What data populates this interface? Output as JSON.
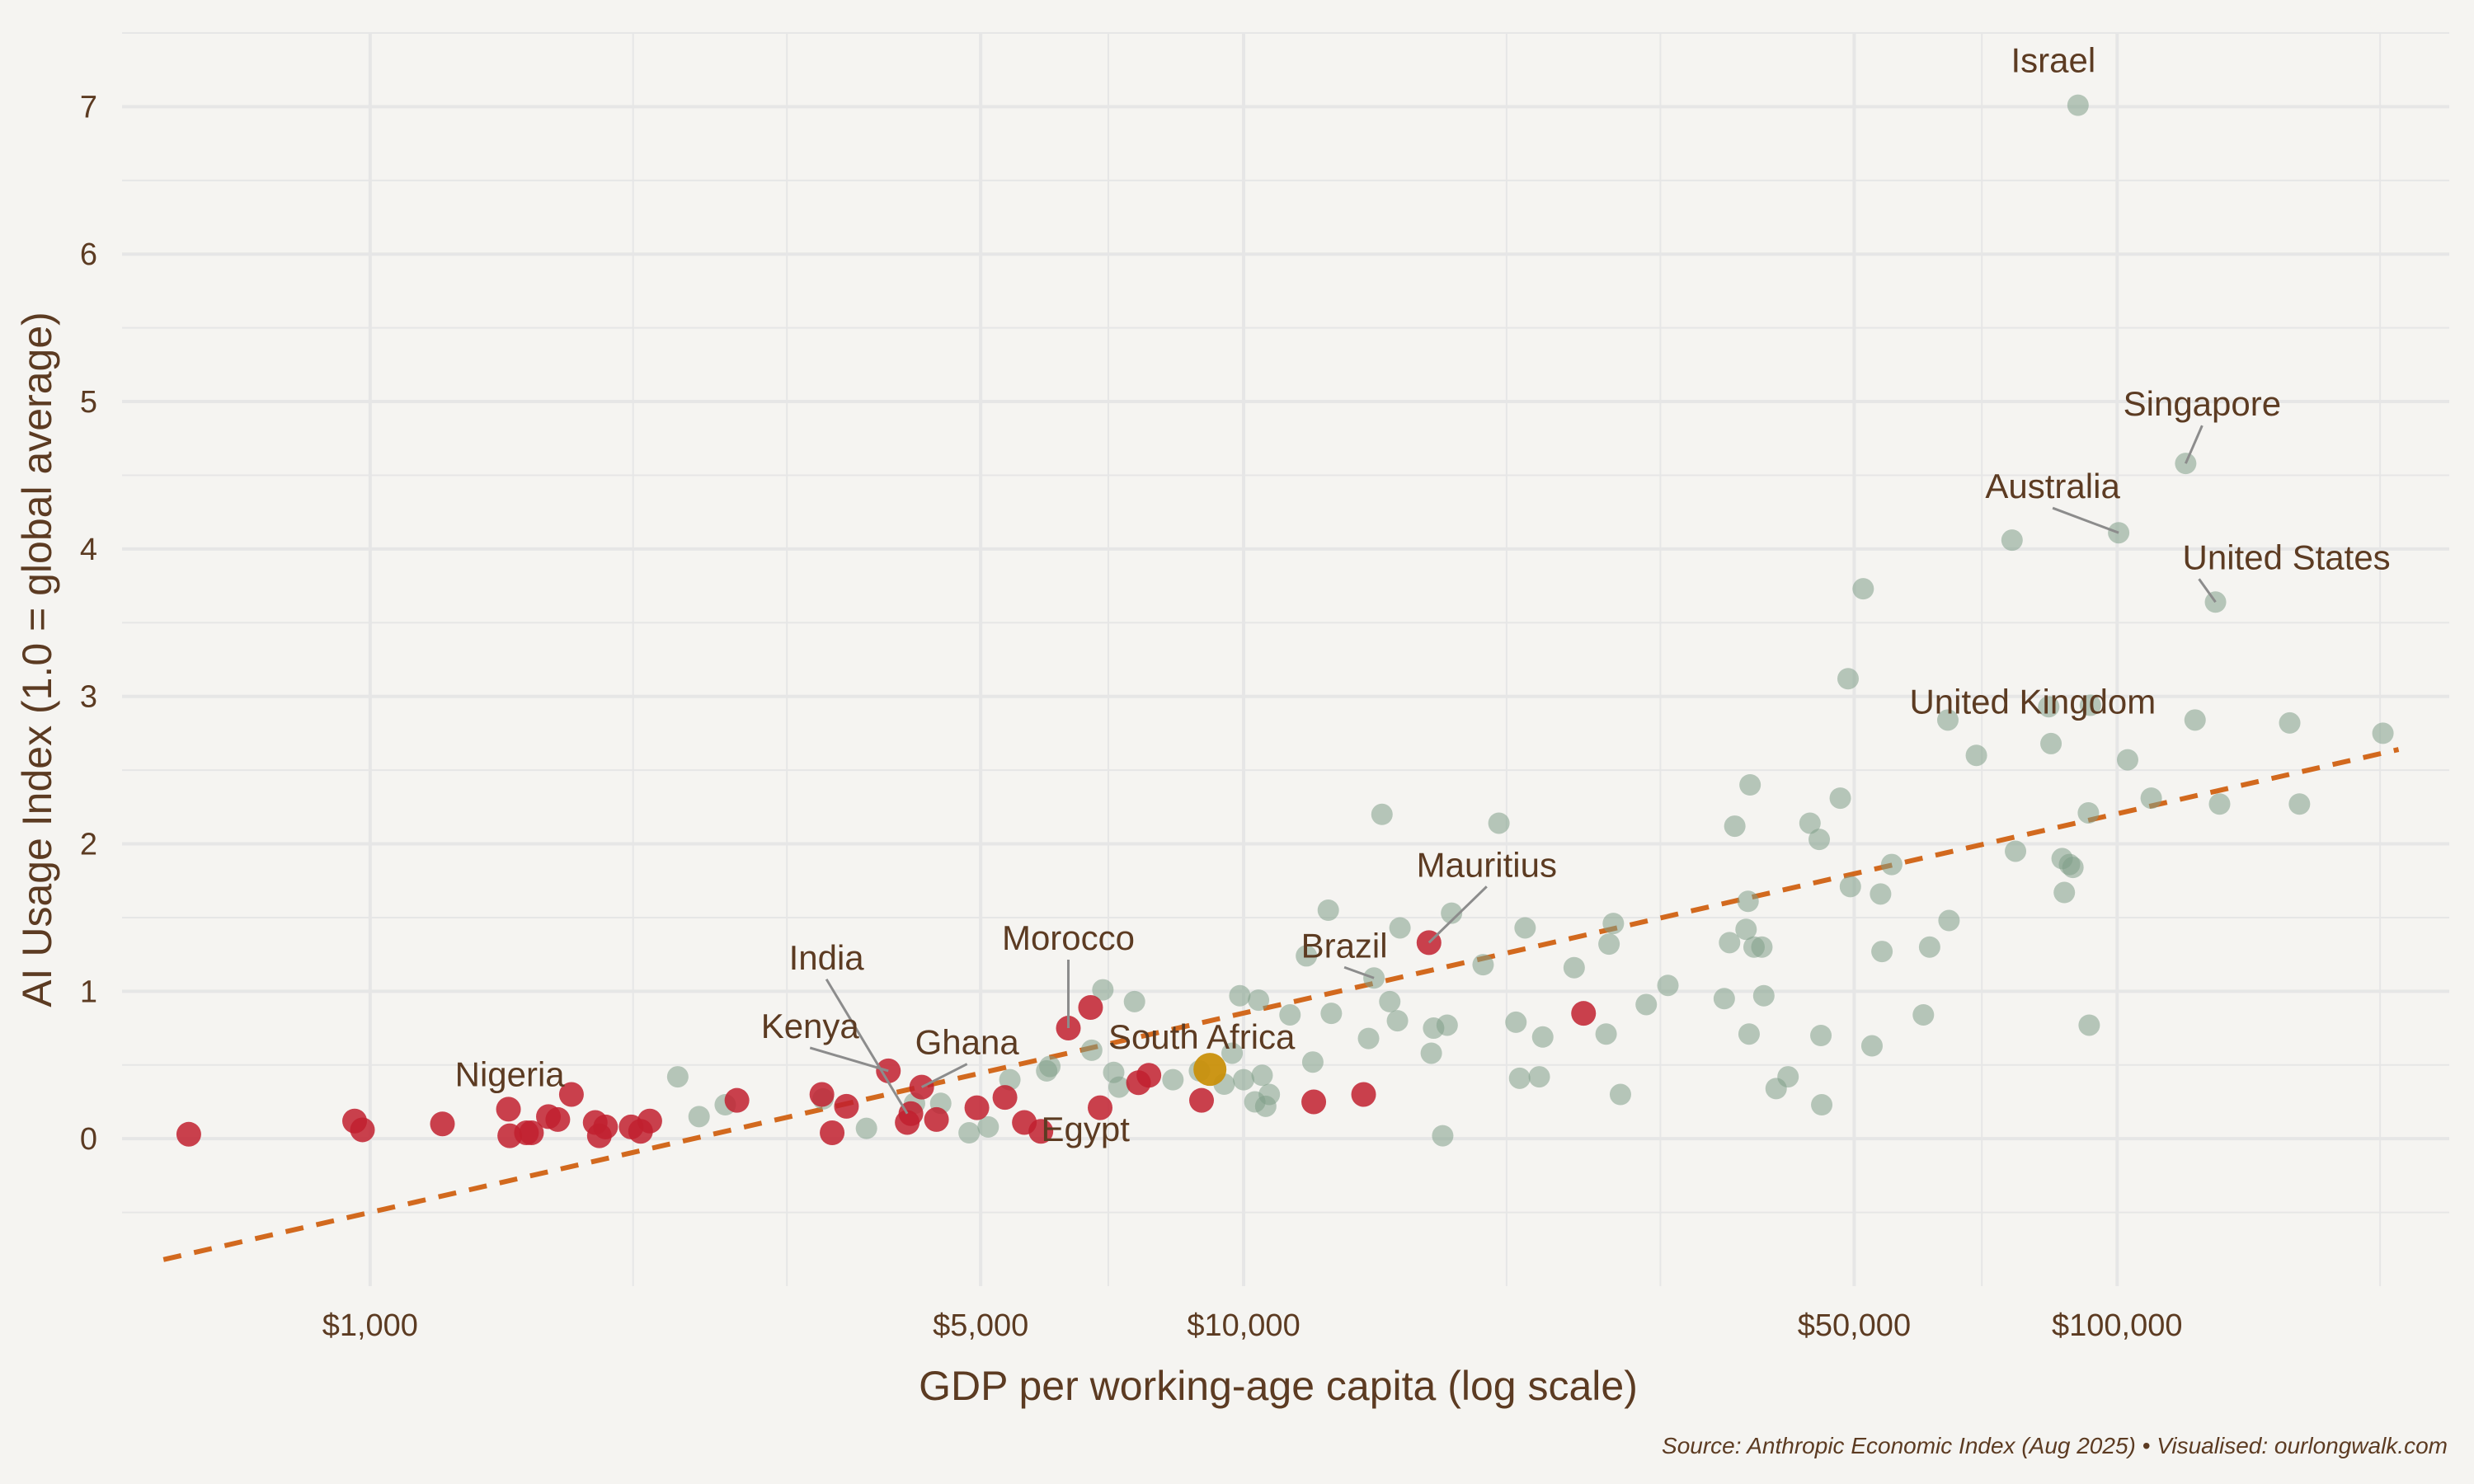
{
  "colors": {
    "background": "#f5f4f1",
    "grid": "#e6e6e6",
    "text": "#5c3b22",
    "rest_of_world": "#7f9f89",
    "africa": "#c1202f",
    "highlight": "#c9900b",
    "trend": "#d2691e",
    "leader": "#8c8c8c"
  },
  "chart_data": {
    "type": "scatter",
    "title": "",
    "xlabel": "GDP per working-age capita (log scale)",
    "ylabel": "AI Usage Index (1.0 = global average)",
    "x_scale": "log",
    "xlim": [
      520,
      240000
    ],
    "ylim": [
      -1,
      7.5
    ],
    "grid": true,
    "legend": "none",
    "x_ticks": [
      {
        "value": 1000,
        "label": "$1,000"
      },
      {
        "value": 5000,
        "label": "$5,000"
      },
      {
        "value": 10000,
        "label": "$10,000"
      },
      {
        "value": 50000,
        "label": "$50,000"
      },
      {
        "value": 100000,
        "label": "$100,000"
      }
    ],
    "x_minor_ticks": [
      2000,
      3000,
      7000,
      20000,
      30000,
      70000,
      200000
    ],
    "y_ticks": [
      {
        "value": 0,
        "label": "0"
      },
      {
        "value": 1,
        "label": "1"
      },
      {
        "value": 2,
        "label": "2"
      },
      {
        "value": 3,
        "label": "3"
      },
      {
        "value": 4,
        "label": "4"
      },
      {
        "value": 5,
        "label": "5"
      },
      {
        "value": 6,
        "label": "6"
      },
      {
        "value": 7,
        "label": "7"
      }
    ],
    "y_minor_ticks": [
      -0.5,
      0.5,
      1.5,
      2.5,
      3.5,
      4.5,
      5.5,
      6.5,
      7.5
    ],
    "trend_line": {
      "x": [
        580,
        210000
      ],
      "y": [
        -0.82,
        2.64
      ]
    },
    "series": [
      {
        "group": "rest_of_world",
        "points": [
          {
            "x": 2250,
            "y": 0.42
          },
          {
            "x": 2380,
            "y": 0.15
          },
          {
            "x": 2550,
            "y": 0.23
          },
          {
            "x": 3300,
            "y": 0.27
          },
          {
            "x": 3700,
            "y": 0.07
          },
          {
            "x": 4200,
            "y": 0.24
          },
          {
            "x": 4500,
            "y": 0.24
          },
          {
            "x": 4850,
            "y": 0.04
          },
          {
            "x": 5100,
            "y": 0.08
          },
          {
            "x": 5400,
            "y": 0.4
          },
          {
            "x": 5950,
            "y": 0.46
          },
          {
            "x": 6000,
            "y": 0.49
          },
          {
            "x": 6700,
            "y": 0.6
          },
          {
            "x": 6900,
            "y": 1.01
          },
          {
            "x": 7100,
            "y": 0.45
          },
          {
            "x": 7200,
            "y": 0.35
          },
          {
            "x": 7500,
            "y": 0.93
          },
          {
            "x": 8300,
            "y": 0.4
          },
          {
            "x": 8900,
            "y": 0.46
          },
          {
            "x": 9500,
            "y": 0.37
          },
          {
            "x": 9700,
            "y": 0.58
          },
          {
            "x": 9900,
            "y": 0.97
          },
          {
            "x": 10000,
            "y": 0.4
          },
          {
            "x": 10300,
            "y": 0.25
          },
          {
            "x": 10400,
            "y": 0.94
          },
          {
            "x": 10500,
            "y": 0.43
          },
          {
            "x": 10600,
            "y": 0.22
          },
          {
            "x": 10700,
            "y": 0.3
          },
          {
            "x": 11300,
            "y": 0.84
          },
          {
            "x": 11800,
            "y": 1.24
          },
          {
            "x": 12000,
            "y": 0.52
          },
          {
            "x": 12500,
            "y": 1.55
          },
          {
            "x": 12600,
            "y": 0.85
          },
          {
            "x": 13900,
            "y": 0.68
          },
          {
            "x": 14100,
            "y": 1.09
          },
          {
            "x": 14400,
            "y": 2.2
          },
          {
            "x": 14700,
            "y": 0.93
          },
          {
            "x": 15000,
            "y": 0.8
          },
          {
            "x": 15100,
            "y": 1.43
          },
          {
            "x": 16400,
            "y": 0.58
          },
          {
            "x": 16500,
            "y": 0.75
          },
          {
            "x": 16900,
            "y": 0.02
          },
          {
            "x": 17100,
            "y": 0.77
          },
          {
            "x": 17300,
            "y": 1.53
          },
          {
            "x": 18800,
            "y": 1.18
          },
          {
            "x": 19600,
            "y": 2.14
          },
          {
            "x": 20500,
            "y": 0.79
          },
          {
            "x": 20700,
            "y": 0.41
          },
          {
            "x": 21000,
            "y": 1.43
          },
          {
            "x": 21800,
            "y": 0.42
          },
          {
            "x": 22000,
            "y": 0.69
          },
          {
            "x": 23900,
            "y": 1.16
          },
          {
            "x": 26000,
            "y": 0.71
          },
          {
            "x": 26200,
            "y": 1.32
          },
          {
            "x": 26500,
            "y": 1.46
          },
          {
            "x": 27000,
            "y": 0.3
          },
          {
            "x": 28900,
            "y": 0.91
          },
          {
            "x": 30600,
            "y": 1.04
          },
          {
            "x": 35500,
            "y": 0.95
          },
          {
            "x": 36000,
            "y": 1.33
          },
          {
            "x": 36500,
            "y": 2.12
          },
          {
            "x": 37600,
            "y": 1.42
          },
          {
            "x": 37800,
            "y": 1.61
          },
          {
            "x": 37900,
            "y": 0.71
          },
          {
            "x": 38000,
            "y": 2.4
          },
          {
            "x": 38400,
            "y": 1.3
          },
          {
            "x": 39200,
            "y": 1.3
          },
          {
            "x": 39400,
            "y": 0.97
          },
          {
            "x": 40700,
            "y": 0.34
          },
          {
            "x": 42000,
            "y": 0.42
          },
          {
            "x": 44500,
            "y": 2.14
          },
          {
            "x": 45600,
            "y": 2.03
          },
          {
            "x": 45800,
            "y": 0.7
          },
          {
            "x": 45900,
            "y": 0.23
          },
          {
            "x": 48200,
            "y": 2.31
          },
          {
            "x": 49200,
            "y": 3.12
          },
          {
            "x": 49500,
            "y": 1.71
          },
          {
            "x": 51200,
            "y": 3.73
          },
          {
            "x": 52400,
            "y": 0.63
          },
          {
            "x": 53600,
            "y": 1.66
          },
          {
            "x": 53800,
            "y": 1.27
          },
          {
            "x": 55200,
            "y": 1.86
          },
          {
            "x": 60000,
            "y": 0.84
          },
          {
            "x": 61000,
            "y": 1.3
          },
          {
            "x": 64000,
            "y": 2.84
          },
          {
            "x": 64200,
            "y": 1.48
          },
          {
            "x": 69000,
            "y": 2.6
          },
          {
            "x": 75800,
            "y": 4.06
          },
          {
            "x": 76500,
            "y": 1.95
          },
          {
            "x": 83500,
            "y": 2.93
          },
          {
            "x": 84000,
            "y": 2.68
          },
          {
            "x": 86500,
            "y": 1.9
          },
          {
            "x": 87000,
            "y": 1.67
          },
          {
            "x": 88200,
            "y": 1.86
          },
          {
            "x": 89000,
            "y": 1.84
          },
          {
            "x": 90200,
            "y": 7.01
          },
          {
            "x": 92700,
            "y": 2.21
          },
          {
            "x": 93200,
            "y": 2.94
          },
          {
            "x": 92900,
            "y": 0.77
          },
          {
            "x": 100400,
            "y": 4.11
          },
          {
            "x": 102800,
            "y": 2.57
          },
          {
            "x": 109400,
            "y": 2.31
          },
          {
            "x": 119800,
            "y": 4.58
          },
          {
            "x": 122800,
            "y": 2.84
          },
          {
            "x": 129600,
            "y": 3.64
          },
          {
            "x": 131000,
            "y": 2.27
          },
          {
            "x": 157600,
            "y": 2.82
          },
          {
            "x": 161700,
            "y": 2.27
          },
          {
            "x": 201500,
            "y": 2.75
          }
        ]
      },
      {
        "group": "africa",
        "points": [
          {
            "x": 620,
            "y": 0.03
          },
          {
            "x": 960,
            "y": 0.12
          },
          {
            "x": 980,
            "y": 0.06
          },
          {
            "x": 1210,
            "y": 0.1
          },
          {
            "x": 1440,
            "y": 0.2
          },
          {
            "x": 1445,
            "y": 0.02
          },
          {
            "x": 1510,
            "y": 0.04
          },
          {
            "x": 1530,
            "y": 0.04
          },
          {
            "x": 1600,
            "y": 0.15
          },
          {
            "x": 1640,
            "y": 0.13
          },
          {
            "x": 1700,
            "y": 0.3
          },
          {
            "x": 1810,
            "y": 0.11
          },
          {
            "x": 1830,
            "y": 0.02
          },
          {
            "x": 1860,
            "y": 0.08
          },
          {
            "x": 1990,
            "y": 0.08
          },
          {
            "x": 2040,
            "y": 0.05
          },
          {
            "x": 2090,
            "y": 0.12
          },
          {
            "x": 2630,
            "y": 0.26
          },
          {
            "x": 3290,
            "y": 0.3
          },
          {
            "x": 3380,
            "y": 0.04
          },
          {
            "x": 3510,
            "y": 0.22
          },
          {
            "x": 3920,
            "y": 0.46
          },
          {
            "x": 4120,
            "y": 0.11
          },
          {
            "x": 4160,
            "y": 0.17
          },
          {
            "x": 4280,
            "y": 0.35
          },
          {
            "x": 4450,
            "y": 0.13
          },
          {
            "x": 4950,
            "y": 0.21
          },
          {
            "x": 5330,
            "y": 0.28
          },
          {
            "x": 5610,
            "y": 0.11
          },
          {
            "x": 5860,
            "y": 0.05
          },
          {
            "x": 6300,
            "y": 0.75
          },
          {
            "x": 6680,
            "y": 0.89
          },
          {
            "x": 6850,
            "y": 0.21
          },
          {
            "x": 7580,
            "y": 0.38
          },
          {
            "x": 7790,
            "y": 0.43
          },
          {
            "x": 8950,
            "y": 0.26
          },
          {
            "x": 12030,
            "y": 0.25
          },
          {
            "x": 13720,
            "y": 0.3
          },
          {
            "x": 16300,
            "y": 1.33
          },
          {
            "x": 24500,
            "y": 0.85
          }
        ]
      },
      {
        "group": "highlight",
        "points": [
          {
            "x": 9150,
            "y": 0.47
          }
        ]
      }
    ],
    "annotations": [
      {
        "text": "Israel",
        "x": 90200,
        "y": 7.01,
        "anchor": "middle",
        "dx": -30,
        "dy": -40,
        "leader": false
      },
      {
        "text": "Singapore",
        "x": 119800,
        "y": 4.58,
        "anchor": "middle",
        "dx": 20,
        "dy": -58,
        "leader": true
      },
      {
        "text": "Australia",
        "x": 100400,
        "y": 4.11,
        "anchor": "middle",
        "dx": -80,
        "dy": -42,
        "leader": true
      },
      {
        "text": "United States",
        "x": 129600,
        "y": 3.64,
        "anchor": "start",
        "dx": -40,
        "dy": -40,
        "leader": true
      },
      {
        "text": "United Kingdom",
        "x": 93200,
        "y": 2.94,
        "anchor": "middle",
        "dx": -70,
        "dy": 10,
        "leader": false
      },
      {
        "text": "Mauritius",
        "x": 16300,
        "y": 1.33,
        "anchor": "middle",
        "dx": 70,
        "dy": -80,
        "leader": true
      },
      {
        "text": "Brazil",
        "x": 14100,
        "y": 1.09,
        "anchor": "middle",
        "dx": -36,
        "dy": -25,
        "leader": true
      },
      {
        "text": "Morocco",
        "x": 6300,
        "y": 0.75,
        "anchor": "middle",
        "dx": 0,
        "dy": -95,
        "leader": true
      },
      {
        "text": "India",
        "x": 4120,
        "y": 0.17,
        "anchor": "middle",
        "dx": -98,
        "dy": -175,
        "leader": true
      },
      {
        "text": "Kenya",
        "x": 3920,
        "y": 0.46,
        "anchor": "middle",
        "dx": -95,
        "dy": -40,
        "leader": true
      },
      {
        "text": "Ghana",
        "x": 4280,
        "y": 0.35,
        "anchor": "middle",
        "dx": 55,
        "dy": -40,
        "leader": true
      },
      {
        "text": "South Africa",
        "x": 9150,
        "y": 0.47,
        "anchor": "middle",
        "dx": -10,
        "dy": -25,
        "leader": false
      },
      {
        "text": "Egypt",
        "x": 5860,
        "y": 0.05,
        "anchor": "middle",
        "dx": 54,
        "dy": 12,
        "leader": false
      },
      {
        "text": "Nigeria",
        "x": 1445,
        "y": 0.02,
        "anchor": "middle",
        "dx": 0,
        "dy": -60,
        "leader": false
      }
    ]
  },
  "source": "Source: Anthropic Economic Index (Aug 2025) • Visualised: ourlongwalk.com"
}
